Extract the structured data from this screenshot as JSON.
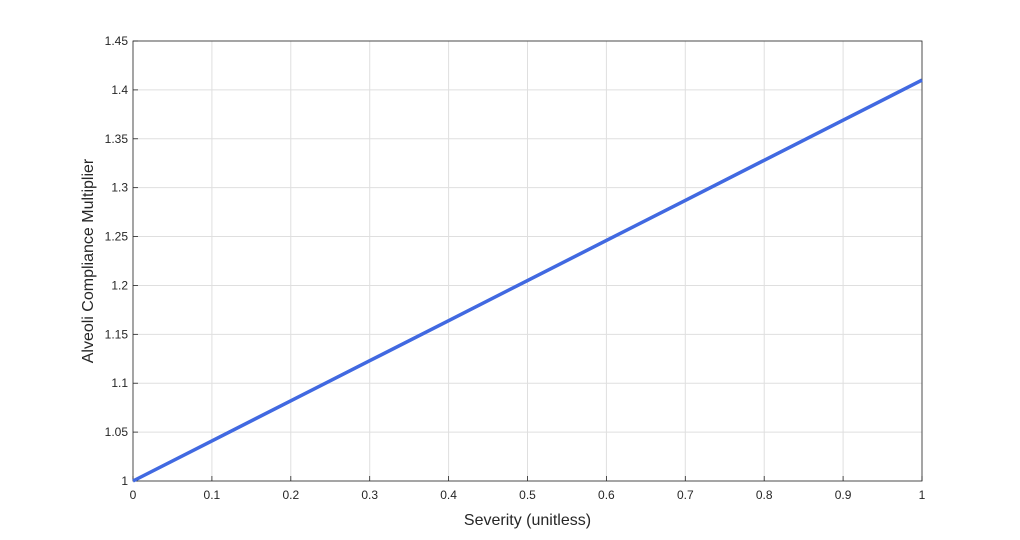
{
  "chart_data": {
    "type": "line",
    "title": "",
    "xlabel": "Severity (unitless)",
    "ylabel": "Alveoli Compliance Multiplier",
    "xlim": [
      0,
      1
    ],
    "ylim": [
      1,
      1.45
    ],
    "xticks": [
      0,
      0.1,
      0.2,
      0.3,
      0.4,
      0.5,
      0.6,
      0.7,
      0.8,
      0.9,
      1
    ],
    "xtick_labels": [
      "0",
      "0.1",
      "0.2",
      "0.3",
      "0.4",
      "0.5",
      "0.6",
      "0.7",
      "0.8",
      "0.9",
      "1"
    ],
    "yticks": [
      1,
      1.05,
      1.1,
      1.15,
      1.2,
      1.25,
      1.3,
      1.35,
      1.4,
      1.45
    ],
    "ytick_labels": [
      "1",
      "1.05",
      "1.1",
      "1.15",
      "1.2",
      "1.25",
      "1.3",
      "1.35",
      "1.4",
      "1.45"
    ],
    "grid": true,
    "legend": "none",
    "series": [
      {
        "color": "#4169e1",
        "x": [
          0,
          0.1,
          0.2,
          0.3,
          0.4,
          0.5,
          0.6,
          0.7,
          0.8,
          0.9,
          1
        ],
        "y": [
          1,
          1.041,
          1.082,
          1.123,
          1.164,
          1.205,
          1.246,
          1.287,
          1.328,
          1.369,
          1.41
        ]
      }
    ]
  }
}
